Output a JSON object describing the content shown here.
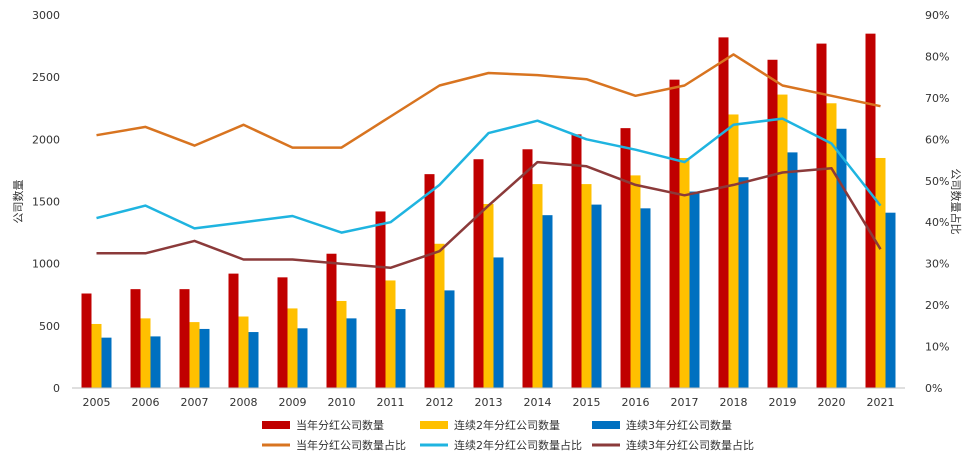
{
  "chart_data": {
    "type": "bar",
    "categories": [
      "2005",
      "2006",
      "2007",
      "2008",
      "2009",
      "2010",
      "2011",
      "2012",
      "2013",
      "2014",
      "2015",
      "2016",
      "2017",
      "2018",
      "2019",
      "2020",
      "2021"
    ],
    "ylabel": "公司数量",
    "y2label": "公司数量占比",
    "ylim": [
      0,
      3000
    ],
    "y2lim": [
      0,
      0.9
    ],
    "yticks": [
      "0",
      "500",
      "1000",
      "1500",
      "2000",
      "2500",
      "3000"
    ],
    "y2ticks": [
      "0%",
      "10%",
      "20%",
      "30%",
      "40%",
      "50%",
      "60%",
      "70%",
      "80%",
      "90%"
    ],
    "grid": false,
    "legend_position": "bottom",
    "bar_series": [
      {
        "name": "当年分红公司数量",
        "color": "#C00000",
        "values": [
          760,
          795,
          795,
          920,
          890,
          1080,
          1420,
          1720,
          1840,
          1920,
          2040,
          2090,
          2480,
          2820,
          2640,
          2770,
          2850
        ]
      },
      {
        "name": "连续2年分红公司数量",
        "color": "#FFC000",
        "values": [
          515,
          560,
          530,
          575,
          640,
          700,
          865,
          1160,
          1480,
          1640,
          1640,
          1710,
          1850,
          2200,
          2360,
          2290,
          1850
        ]
      },
      {
        "name": "连续3年分红公司数量",
        "color": "#0070C0",
        "values": [
          405,
          415,
          475,
          450,
          480,
          560,
          635,
          785,
          1050,
          1390,
          1475,
          1445,
          1580,
          1695,
          1895,
          2085,
          1410
        ]
      }
    ],
    "line_series": [
      {
        "name": "当年分红公司数量占比",
        "color": "#D87420",
        "values": [
          0.61,
          0.63,
          0.585,
          0.635,
          0.58,
          0.58,
          0.655,
          0.73,
          0.76,
          0.755,
          0.745,
          0.705,
          0.73,
          0.805,
          0.73,
          0.705,
          0.68
        ]
      },
      {
        "name": "连续2年分红公司数量占比",
        "color": "#1FB4E0",
        "values": [
          0.41,
          0.44,
          0.385,
          0.4,
          0.415,
          0.375,
          0.4,
          0.49,
          0.615,
          0.645,
          0.6,
          0.575,
          0.545,
          0.635,
          0.65,
          0.59,
          0.44
        ]
      },
      {
        "name": "连续3年分红公司数量占比",
        "color": "#8B3A3A",
        "values": [
          0.325,
          0.325,
          0.355,
          0.31,
          0.31,
          0.3,
          0.29,
          0.33,
          0.44,
          0.545,
          0.535,
          0.49,
          0.465,
          0.49,
          0.52,
          0.53,
          0.335
        ]
      }
    ]
  }
}
